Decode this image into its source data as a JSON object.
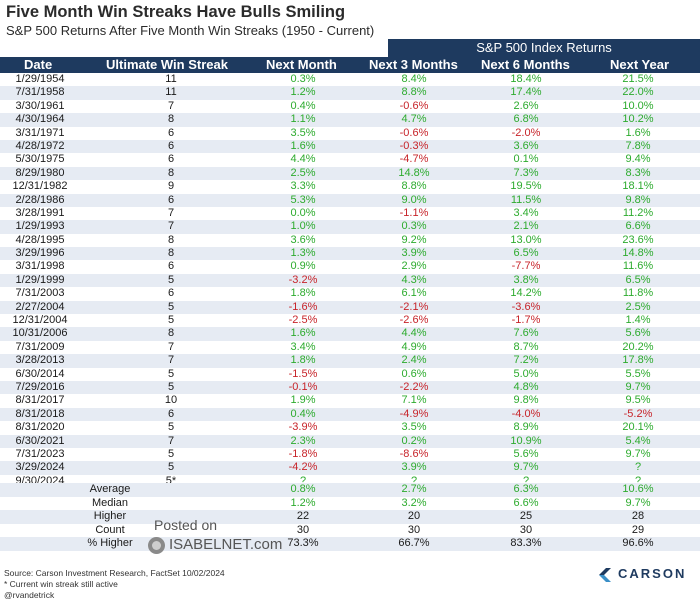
{
  "title": "Five Month Win Streaks Have Bulls Smiling",
  "subtitle": "S&P 500 Returns After Five Month Win Streaks (1950 - Current)",
  "super_header": "S&P 500 Index Returns",
  "headers": {
    "date": "Date",
    "streak": "Ultimate Win Streak",
    "next_month": "Next Month",
    "next_3_months": "Next 3 Months",
    "next_6_months": "Next 6 Months",
    "next_year": "Next Year"
  },
  "rows": [
    {
      "date": "1/29/1954",
      "streak": "11",
      "m1": "0.3%",
      "m3": "8.4%",
      "m6": "18.4%",
      "y1": "21.5%"
    },
    {
      "date": "7/31/1958",
      "streak": "11",
      "m1": "1.2%",
      "m3": "8.8%",
      "m6": "17.4%",
      "y1": "22.0%"
    },
    {
      "date": "3/30/1961",
      "streak": "7",
      "m1": "0.4%",
      "m3": "-0.6%",
      "m6": "2.6%",
      "y1": "10.0%"
    },
    {
      "date": "4/30/1964",
      "streak": "8",
      "m1": "1.1%",
      "m3": "4.7%",
      "m6": "6.8%",
      "y1": "10.2%"
    },
    {
      "date": "3/31/1971",
      "streak": "6",
      "m1": "3.5%",
      "m3": "-0.6%",
      "m6": "-2.0%",
      "y1": "1.6%"
    },
    {
      "date": "4/28/1972",
      "streak": "6",
      "m1": "1.6%",
      "m3": "-0.3%",
      "m6": "3.6%",
      "y1": "7.8%"
    },
    {
      "date": "5/30/1975",
      "streak": "6",
      "m1": "4.4%",
      "m3": "-4.7%",
      "m6": "0.1%",
      "y1": "9.4%"
    },
    {
      "date": "8/29/1980",
      "streak": "8",
      "m1": "2.5%",
      "m3": "14.8%",
      "m6": "7.3%",
      "y1": "8.3%"
    },
    {
      "date": "12/31/1982",
      "streak": "9",
      "m1": "3.3%",
      "m3": "8.8%",
      "m6": "19.5%",
      "y1": "18.1%"
    },
    {
      "date": "2/28/1986",
      "streak": "6",
      "m1": "5.3%",
      "m3": "9.0%",
      "m6": "11.5%",
      "y1": "9.8%"
    },
    {
      "date": "3/28/1991",
      "streak": "7",
      "m1": "0.0%",
      "m3": "-1.1%",
      "m6": "3.4%",
      "y1": "11.2%"
    },
    {
      "date": "1/29/1993",
      "streak": "7",
      "m1": "1.0%",
      "m3": "0.3%",
      "m6": "2.1%",
      "y1": "6.6%"
    },
    {
      "date": "4/28/1995",
      "streak": "8",
      "m1": "3.6%",
      "m3": "9.2%",
      "m6": "13.0%",
      "y1": "23.6%"
    },
    {
      "date": "3/29/1996",
      "streak": "8",
      "m1": "1.3%",
      "m3": "3.9%",
      "m6": "6.5%",
      "y1": "14.8%"
    },
    {
      "date": "3/31/1998",
      "streak": "6",
      "m1": "0.9%",
      "m3": "2.9%",
      "m6": "-7.7%",
      "y1": "11.6%"
    },
    {
      "date": "1/29/1999",
      "streak": "5",
      "m1": "-3.2%",
      "m3": "4.3%",
      "m6": "3.8%",
      "y1": "6.5%"
    },
    {
      "date": "7/31/2003",
      "streak": "6",
      "m1": "1.8%",
      "m3": "6.1%",
      "m6": "14.2%",
      "y1": "11.8%"
    },
    {
      "date": "2/27/2004",
      "streak": "5",
      "m1": "-1.6%",
      "m3": "-2.1%",
      "m6": "-3.6%",
      "y1": "2.5%"
    },
    {
      "date": "12/31/2004",
      "streak": "5",
      "m1": "-2.5%",
      "m3": "-2.6%",
      "m6": "-1.7%",
      "y1": "1.4%"
    },
    {
      "date": "10/31/2006",
      "streak": "8",
      "m1": "1.6%",
      "m3": "4.4%",
      "m6": "7.6%",
      "y1": "5.6%"
    },
    {
      "date": "7/31/2009",
      "streak": "7",
      "m1": "3.4%",
      "m3": "4.9%",
      "m6": "8.7%",
      "y1": "20.2%"
    },
    {
      "date": "3/28/2013",
      "streak": "7",
      "m1": "1.8%",
      "m3": "2.4%",
      "m6": "7.2%",
      "y1": "17.8%"
    },
    {
      "date": "6/30/2014",
      "streak": "5",
      "m1": "-1.5%",
      "m3": "0.6%",
      "m6": "5.0%",
      "y1": "5.5%"
    },
    {
      "date": "7/29/2016",
      "streak": "5",
      "m1": "-0.1%",
      "m3": "-2.2%",
      "m6": "4.8%",
      "y1": "9.7%"
    },
    {
      "date": "8/31/2017",
      "streak": "10",
      "m1": "1.9%",
      "m3": "7.1%",
      "m6": "9.8%",
      "y1": "9.5%"
    },
    {
      "date": "8/31/2018",
      "streak": "6",
      "m1": "0.4%",
      "m3": "-4.9%",
      "m6": "-4.0%",
      "y1": "-5.2%"
    },
    {
      "date": "8/31/2020",
      "streak": "5",
      "m1": "-3.9%",
      "m3": "3.5%",
      "m6": "8.9%",
      "y1": "20.1%"
    },
    {
      "date": "6/30/2021",
      "streak": "7",
      "m1": "2.3%",
      "m3": "0.2%",
      "m6": "10.9%",
      "y1": "5.4%"
    },
    {
      "date": "7/31/2023",
      "streak": "5",
      "m1": "-1.8%",
      "m3": "-8.6%",
      "m6": "5.6%",
      "y1": "9.7%"
    },
    {
      "date": "3/29/2024",
      "streak": "5",
      "m1": "-4.2%",
      "m3": "3.9%",
      "m6": "9.7%",
      "y1": "?"
    },
    {
      "date": "9/30/2024",
      "streak": "5*",
      "m1": "?",
      "m3": "?",
      "m6": "?",
      "y1": "?"
    }
  ],
  "summary": [
    {
      "label": "Average",
      "m1": "0.8%",
      "m3": "2.7%",
      "m6": "6.3%",
      "y1": "10.6%"
    },
    {
      "label": "Median",
      "m1": "1.2%",
      "m3": "3.2%",
      "m6": "6.6%",
      "y1": "9.7%"
    },
    {
      "label": "Higher",
      "m1": "22",
      "m3": "20",
      "m6": "25",
      "y1": "28"
    },
    {
      "label": "Count",
      "m1": "30",
      "m3": "30",
      "m6": "30",
      "y1": "29"
    },
    {
      "label": "% Higher",
      "m1": "73.3%",
      "m3": "66.7%",
      "m6": "83.3%",
      "y1": "96.6%"
    }
  ],
  "watermark": {
    "posted": "Posted on",
    "name": "ISABELNET.com"
  },
  "footnotes": [
    "Source: Carson Investment Research, FactSet 10/02/2024",
    "* Current win streak still active",
    "@rvandetrick"
  ],
  "brand": "CARSON",
  "colors": {
    "header_bg": "#1e3a5f",
    "positive": "#2dab2e",
    "negative": "#c7242a",
    "band": "#e6ebf3"
  }
}
